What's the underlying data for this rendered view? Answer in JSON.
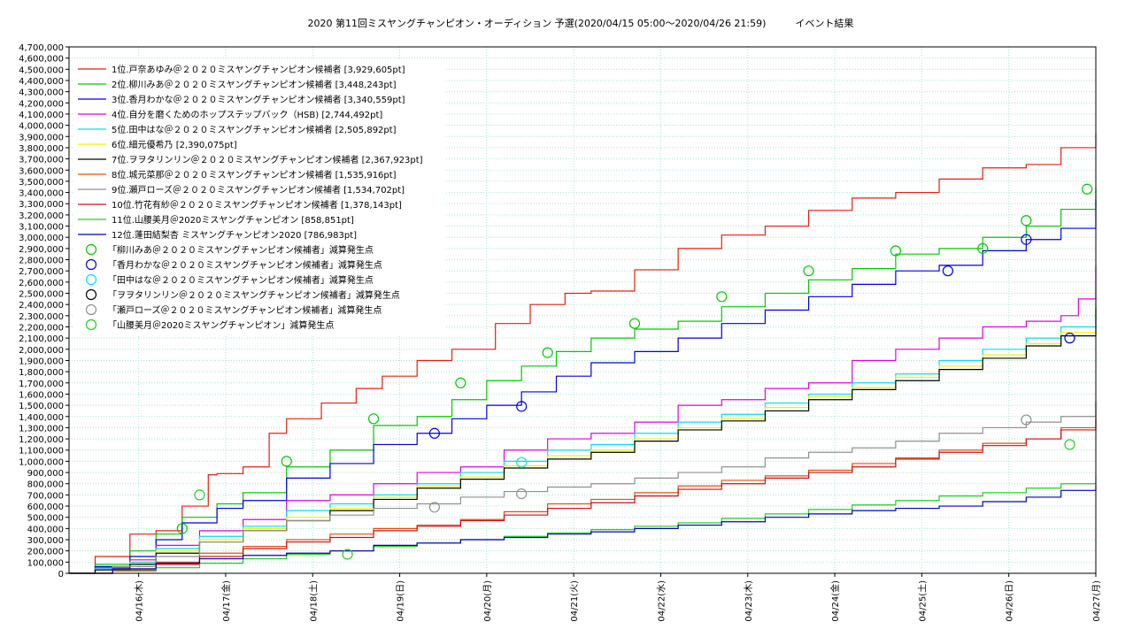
{
  "chart_data": {
    "type": "line",
    "title": "2020 第11回ミスヤングチャンピオン・オーディション 予選(2020/04/15 05:00〜2020/04/26 21:59)　　　イベント結果",
    "xlabel": "",
    "ylabel": "",
    "xlim": [
      0,
      11.8
    ],
    "ylim": [
      0,
      4700000
    ],
    "y_ticks": [
      0,
      100000,
      200000,
      300000,
      400000,
      500000,
      600000,
      700000,
      800000,
      900000,
      1000000,
      1100000,
      1200000,
      1300000,
      1400000,
      1500000,
      1600000,
      1700000,
      1800000,
      1900000,
      2000000,
      2100000,
      2200000,
      2300000,
      2400000,
      2500000,
      2600000,
      2700000,
      2800000,
      2900000,
      3000000,
      3100000,
      3200000,
      3300000,
      3400000,
      3500000,
      3600000,
      3700000,
      3800000,
      3900000,
      4000000,
      4100000,
      4200000,
      4300000,
      4400000,
      4500000,
      4600000,
      4700000
    ],
    "y_tick_labels": [
      "0",
      "100,000",
      "200,000",
      "300,000",
      "400,000",
      "500,000",
      "600,000",
      "700,000",
      "800,000",
      "900,000",
      "1,000,000",
      "1,100,000",
      "1,200,000",
      "1,300,000",
      "1,400,000",
      "1,500,000",
      "1,600,000",
      "1,700,000",
      "1,800,000",
      "1,900,000",
      "2,000,000",
      "2,100,000",
      "2,200,000",
      "2,300,000",
      "2,400,000",
      "2,500,000",
      "2,600,000",
      "2,700,000",
      "2,800,000",
      "2,900,000",
      "3,000,000",
      "3,100,000",
      "3,200,000",
      "3,300,000",
      "3,400,000",
      "3,500,000",
      "3,600,000",
      "3,700,000",
      "3,800,000",
      "3,900,000",
      "4,000,000",
      "4,100,000",
      "4,200,000",
      "4,300,000",
      "4,400,000",
      "4,500,000",
      "4,600,000",
      "4,700,000"
    ],
    "x_ticks": [
      {
        "x": 0.8,
        "label": "04/16(木)"
      },
      {
        "x": 1.8,
        "label": "04/17(金)"
      },
      {
        "x": 2.8,
        "label": "04/18(土)"
      },
      {
        "x": 3.8,
        "label": "04/19(日)"
      },
      {
        "x": 4.8,
        "label": "04/20(月)"
      },
      {
        "x": 5.8,
        "label": "04/21(火)"
      },
      {
        "x": 6.8,
        "label": "04/22(水)"
      },
      {
        "x": 7.8,
        "label": "04/23(木)"
      },
      {
        "x": 8.8,
        "label": "04/24(金)"
      },
      {
        "x": 9.8,
        "label": "04/25(土)"
      },
      {
        "x": 10.8,
        "label": "04/26(日)"
      },
      {
        "x": 11.8,
        "label": "04/27(月)"
      }
    ],
    "grid": true,
    "legend_position": "top-left",
    "series": [
      {
        "name": "1位.戸奈あゆみ＠２０２０ミスヤングチャンピオン候補者 [3,929,605pt]",
        "color": "#e51e10",
        "x": [
          0,
          0.3,
          0.7,
          1.0,
          1.3,
          1.6,
          1.7,
          2.0,
          2.3,
          2.5,
          2.9,
          3.3,
          3.6,
          4.0,
          4.4,
          4.9,
          5.3,
          5.7,
          6.0,
          6.5,
          7.0,
          7.5,
          8.0,
          8.5,
          9.0,
          9.5,
          10.0,
          10.5,
          11.0,
          11.4,
          11.8
        ],
        "y": [
          0,
          150000,
          350000,
          380000,
          600000,
          880000,
          890000,
          950000,
          1250000,
          1380000,
          1520000,
          1650000,
          1760000,
          1900000,
          2000000,
          2230000,
          2400000,
          2500000,
          2520000,
          2710000,
          2900000,
          3020000,
          3100000,
          3240000,
          3350000,
          3400000,
          3520000,
          3620000,
          3650000,
          3800000,
          3929605
        ]
      },
      {
        "name": "2位.柳川みあ＠２０２０ミスヤングチャンピオン候補者 [3,448,243pt]",
        "color": "#00c800",
        "x": [
          0,
          0.3,
          0.7,
          1.0,
          1.3,
          1.7,
          2.0,
          2.5,
          3.0,
          3.5,
          4.0,
          4.4,
          4.8,
          5.2,
          5.6,
          6.0,
          6.5,
          7.0,
          7.5,
          8.0,
          8.5,
          9.0,
          9.5,
          10.0,
          10.5,
          11.0,
          11.4,
          11.8
        ],
        "y": [
          0,
          80000,
          200000,
          350000,
          500000,
          620000,
          720000,
          950000,
          1100000,
          1320000,
          1400000,
          1550000,
          1720000,
          1850000,
          1980000,
          2100000,
          2180000,
          2250000,
          2380000,
          2500000,
          2620000,
          2720000,
          2850000,
          2900000,
          3000000,
          3100000,
          3250000,
          3448243
        ]
      },
      {
        "name": "3位.香月わかな＠２０２０ミスヤングチャンピオン候補者 [3,340,559pt]",
        "color": "#0000e0",
        "x": [
          0,
          0.3,
          0.7,
          1.0,
          1.3,
          1.7,
          2.0,
          2.5,
          3.0,
          3.5,
          4.0,
          4.4,
          4.8,
          5.2,
          5.6,
          6.0,
          6.5,
          7.0,
          7.5,
          8.0,
          8.5,
          9.0,
          9.5,
          10.0,
          10.5,
          11.0,
          11.4,
          11.8
        ],
        "y": [
          0,
          60000,
          150000,
          300000,
          450000,
          580000,
          650000,
          850000,
          980000,
          1150000,
          1250000,
          1380000,
          1500000,
          1620000,
          1760000,
          1880000,
          1980000,
          2100000,
          2230000,
          2350000,
          2470000,
          2580000,
          2700000,
          2750000,
          2880000,
          2980000,
          3080000,
          3340559
        ]
      },
      {
        "name": "4位.自分を磨くためのホップステップバック（HSB) [2,744,492pt]",
        "color": "#e000e0",
        "x": [
          0,
          0.3,
          0.7,
          1.0,
          1.5,
          2.0,
          2.5,
          3.0,
          3.5,
          4.0,
          4.5,
          5.0,
          5.5,
          6.0,
          6.5,
          7.0,
          7.5,
          8.0,
          8.5,
          9.0,
          9.5,
          10.0,
          10.5,
          11.0,
          11.4,
          11.6,
          11.8
        ],
        "y": [
          0,
          50000,
          120000,
          250000,
          380000,
          480000,
          650000,
          700000,
          800000,
          900000,
          950000,
          1100000,
          1200000,
          1250000,
          1350000,
          1500000,
          1550000,
          1650000,
          1700000,
          1900000,
          2000000,
          2100000,
          2200000,
          2250000,
          2300000,
          2450000,
          2744492
        ]
      },
      {
        "name": "5位.田中はな＠２０２０ミスヤングチャンピオン候補者 [2,505,892pt]",
        "color": "#00e0f0",
        "x": [
          0,
          0.3,
          0.7,
          1.0,
          1.5,
          2.0,
          2.5,
          3.0,
          3.5,
          4.0,
          4.5,
          5.0,
          5.5,
          6.0,
          6.5,
          7.0,
          7.5,
          8.0,
          8.5,
          9.0,
          9.5,
          10.0,
          10.5,
          11.0,
          11.4,
          11.8
        ],
        "y": [
          0,
          40000,
          100000,
          220000,
          330000,
          420000,
          560000,
          620000,
          700000,
          800000,
          900000,
          1000000,
          1100000,
          1150000,
          1250000,
          1350000,
          1420000,
          1520000,
          1600000,
          1700000,
          1780000,
          1900000,
          2000000,
          2100000,
          2200000,
          2505892
        ]
      },
      {
        "name": "6位.細元優希乃 [2,390,075pt]",
        "color": "#f0f000",
        "x": [
          0,
          0.3,
          0.7,
          1.0,
          1.5,
          2.0,
          2.5,
          3.0,
          3.5,
          4.0,
          4.5,
          5.0,
          5.5,
          6.0,
          6.5,
          7.0,
          7.5,
          8.0,
          8.5,
          9.0,
          9.5,
          10.0,
          10.5,
          11.0,
          11.4,
          11.8
        ],
        "y": [
          0,
          30000,
          90000,
          200000,
          300000,
          400000,
          500000,
          580000,
          680000,
          780000,
          860000,
          960000,
          1050000,
          1100000,
          1200000,
          1300000,
          1380000,
          1480000,
          1580000,
          1660000,
          1750000,
          1850000,
          1950000,
          2050000,
          2150000,
          2390075
        ]
      },
      {
        "name": "7位.ヲヲタリンリン＠２０２０ミスヤングチャンピオン候補者 [2,367,923pt]",
        "color": "#000000",
        "x": [
          0,
          0.3,
          0.7,
          1.0,
          1.5,
          2.0,
          2.5,
          3.0,
          3.5,
          4.0,
          4.5,
          5.0,
          5.5,
          6.0,
          6.5,
          7.0,
          7.5,
          8.0,
          8.5,
          9.0,
          9.5,
          10.0,
          10.5,
          11.0,
          11.4,
          11.8
        ],
        "y": [
          0,
          30000,
          80000,
          180000,
          280000,
          380000,
          470000,
          560000,
          660000,
          760000,
          840000,
          940000,
          1020000,
          1080000,
          1180000,
          1280000,
          1360000,
          1450000,
          1550000,
          1640000,
          1720000,
          1820000,
          1920000,
          2030000,
          2120000,
          2367923
        ]
      },
      {
        "name": "8位.城元菜那＠２０２０ミスヤングチャンピオン候補者 [1,535,916pt]",
        "color": "#e05010",
        "x": [
          0,
          0.5,
          1.0,
          1.5,
          2.0,
          2.5,
          3.0,
          3.5,
          4.0,
          4.5,
          5.0,
          5.5,
          6.0,
          6.5,
          7.0,
          7.5,
          8.0,
          8.5,
          9.0,
          9.5,
          10.0,
          10.5,
          11.0,
          11.4,
          11.8
        ],
        "y": [
          0,
          40000,
          100000,
          180000,
          240000,
          300000,
          350000,
          400000,
          430000,
          480000,
          550000,
          620000,
          660000,
          720000,
          780000,
          830000,
          870000,
          920000,
          980000,
          1030000,
          1100000,
          1160000,
          1200000,
          1300000,
          1535916
        ]
      },
      {
        "name": "9位.瀬戸ローズ＠２０２０ミスヤングチャンピオン候補者 [1,534,702pt]",
        "color": "#909090",
        "x": [
          0,
          0.5,
          1.0,
          1.5,
          2.0,
          2.5,
          3.0,
          3.5,
          4.0,
          4.5,
          5.0,
          5.5,
          6.0,
          6.5,
          7.0,
          7.5,
          8.0,
          8.5,
          9.0,
          9.5,
          10.0,
          10.5,
          11.0,
          11.4,
          11.8
        ],
        "y": [
          0,
          60000,
          150000,
          280000,
          380000,
          470000,
          520000,
          580000,
          620000,
          680000,
          730000,
          770000,
          800000,
          850000,
          900000,
          950000,
          1030000,
          1080000,
          1120000,
          1180000,
          1250000,
          1300000,
          1350000,
          1400000,
          1534702
        ]
      },
      {
        "name": "10位.竹花有紗＠２０２０ミスヤングチャンピオン候補者 [1,378,143pt]",
        "color": "#d01010",
        "x": [
          0,
          0.5,
          1.0,
          1.5,
          2.0,
          2.5,
          3.0,
          3.5,
          4.0,
          4.5,
          5.0,
          5.5,
          6.0,
          6.5,
          7.0,
          7.5,
          8.0,
          8.5,
          9.0,
          9.5,
          10.0,
          10.5,
          11.0,
          11.4,
          11.8
        ],
        "y": [
          0,
          30000,
          80000,
          150000,
          220000,
          280000,
          320000,
          380000,
          420000,
          470000,
          520000,
          580000,
          630000,
          690000,
          750000,
          800000,
          850000,
          900000,
          950000,
          1020000,
          1080000,
          1140000,
          1200000,
          1280000,
          1378143
        ]
      },
      {
        "name": "11位.山腰美月＠2020ミスヤングチャンピオン [858,851pt]",
        "color": "#20d020",
        "x": [
          0,
          0.5,
          1.0,
          1.5,
          2.0,
          2.5,
          3.0,
          3.5,
          4.0,
          4.5,
          5.0,
          5.5,
          6.0,
          6.5,
          7.0,
          7.5,
          8.0,
          8.5,
          9.0,
          9.5,
          10.0,
          10.5,
          11.0,
          11.4,
          11.8
        ],
        "y": [
          0,
          20000,
          50000,
          90000,
          130000,
          170000,
          200000,
          240000,
          270000,
          300000,
          330000,
          360000,
          390000,
          420000,
          450000,
          490000,
          530000,
          570000,
          610000,
          650000,
          690000,
          720000,
          760000,
          800000,
          858851
        ]
      },
      {
        "name": "12位.蓬田結梨杏 ミスヤングチャンピオン2020 [786,983pt]",
        "color": "#0000c0",
        "x": [
          0,
          0.5,
          1.0,
          1.5,
          2.0,
          2.5,
          3.0,
          3.5,
          4.0,
          4.5,
          5.0,
          5.5,
          6.0,
          6.5,
          7.0,
          7.5,
          8.0,
          8.5,
          9.0,
          9.5,
          10.0,
          10.5,
          11.0,
          11.4,
          11.8
        ],
        "y": [
          0,
          40000,
          90000,
          130000,
          160000,
          180000,
          200000,
          250000,
          270000,
          300000,
          320000,
          350000,
          370000,
          400000,
          430000,
          460000,
          500000,
          530000,
          560000,
          580000,
          600000,
          640000,
          680000,
          740000,
          786983
        ]
      }
    ],
    "markers": [
      {
        "name": "「柳川みあ＠２０２０ミスヤングチャンピオン候補者」減算発生点",
        "color": "#00c800",
        "x": [
          1.3,
          2.5,
          3.5,
          4.5,
          5.5,
          6.5,
          7.5,
          8.5,
          9.5,
          10.5,
          11.0,
          11.7
        ],
        "y": [
          400000,
          1000000,
          1380000,
          1700000,
          1970000,
          2230000,
          2470000,
          2700000,
          2880000,
          2900000,
          3150000,
          3430000
        ]
      },
      {
        "name": "「香月わかな＠２０２０ミスヤングチャンピオン候補者」減算発生点",
        "color": "#0000e0",
        "x": [
          4.2,
          5.2,
          10.1,
          11.0,
          11.5
        ],
        "y": [
          1250000,
          1490000,
          2700000,
          2980000,
          2100000
        ]
      },
      {
        "name": "「田中はな＠２０２０ミスヤングチャンピオン候補者」減算発生点",
        "color": "#00e0f0",
        "x": [
          5.2
        ],
        "y": [
          990000
        ]
      },
      {
        "name": "「ヲヲタリンリン＠２０２０ミスヤングチャンピオン候補者」減算発生点",
        "color": "#000000",
        "x": [],
        "y": []
      },
      {
        "name": "「瀬戸ローズ＠２０２０ミスヤングチャンピオン候補者」減算発生点",
        "color": "#909090",
        "x": [
          4.2,
          5.2,
          11.0
        ],
        "y": [
          590000,
          710000,
          1370000
        ]
      },
      {
        "name": "「山腰美月＠2020ミスヤングチャンピオン」減算発生点",
        "color": "#20d020",
        "x": [
          1.5,
          3.2,
          11.5
        ],
        "y": [
          700000,
          170000,
          1150000
        ]
      }
    ]
  }
}
